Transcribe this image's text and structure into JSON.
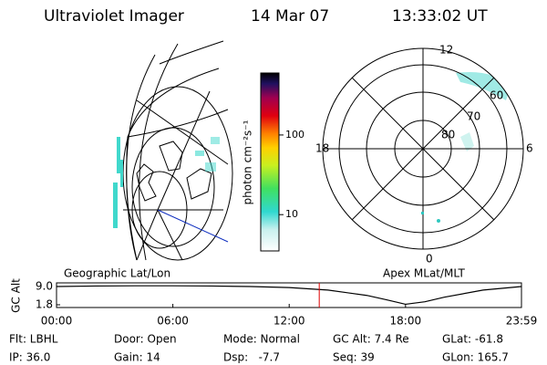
{
  "header": {
    "title": "Ultraviolet Imager",
    "date": "14 Mar 07",
    "time": "13:33:02 UT"
  },
  "left_panel": {
    "label": "Geographic Lat/Lon"
  },
  "right_panel": {
    "label": "Apex MLat/MLT",
    "mlt_labels": [
      "12",
      "18",
      "6",
      "0"
    ],
    "lat_labels": [
      "60",
      "70",
      "80"
    ]
  },
  "colorbar": {
    "label": "photon cm⁻²s⁻¹",
    "scale": "log",
    "lim": [
      3.5,
      600
    ],
    "ticks": [
      10,
      100
    ]
  },
  "chart_data": {
    "type": "line",
    "ylabel": "GC Alt",
    "x": [
      0,
      2,
      4,
      6,
      8,
      10,
      12,
      14,
      16,
      17,
      18,
      19,
      20,
      22,
      23.98
    ],
    "series": [
      {
        "color": "#000000",
        "values": [
          9.0,
          9.2,
          9.3,
          9.3,
          9.2,
          9.0,
          8.6,
          7.6,
          5.5,
          3.8,
          2.0,
          3.0,
          4.8,
          7.6,
          9.0
        ]
      }
    ],
    "xlim": [
      0,
      23.98
    ],
    "xticks": [
      {
        "value": 0,
        "label": "00:00"
      },
      {
        "value": 6,
        "label": "06:00"
      },
      {
        "value": 12,
        "label": "12:00"
      },
      {
        "value": 18,
        "label": "18:00"
      },
      {
        "value": 23.98,
        "label": "23:59"
      }
    ],
    "ylim": [
      0.72,
      10.44
    ],
    "yticks": [
      {
        "value": 9,
        "label": "9.0"
      },
      {
        "value": 1.8,
        "label": "1.8"
      }
    ],
    "current_time": 13.55,
    "current_time_color": "#dd0000"
  },
  "info": {
    "rows": [
      [
        "Flt: LBHL",
        "Door: Open",
        "Mode: Normal",
        "GC Alt: 7.4 Re",
        "GLat: -61.8"
      ],
      [
        "IP: 36.0",
        "Gain: 14",
        "Dsp:   -7.7",
        "Seq: 39",
        "GLon: 165.7"
      ]
    ]
  }
}
